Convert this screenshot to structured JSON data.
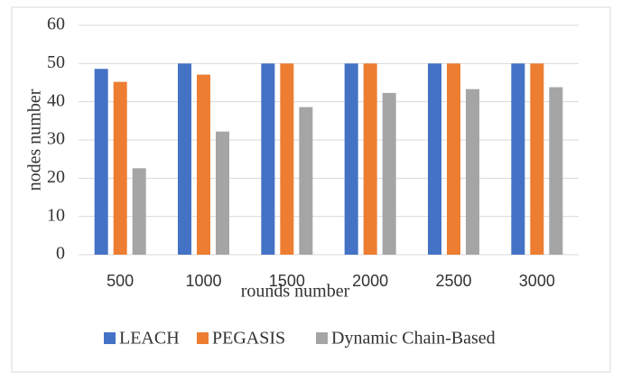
{
  "chart_data": {
    "type": "bar",
    "x_label": "rounds number",
    "y_label": "nodes number",
    "categories": [
      "500",
      "1000",
      "1500",
      "2000",
      "2500",
      "3000"
    ],
    "series": [
      {
        "name": "LEACH",
        "color": "#4472c4",
        "values": [
          48.6,
          50,
          50,
          50,
          50,
          50
        ]
      },
      {
        "name": "PEGASIS",
        "color": "#ed7d31",
        "values": [
          45.2,
          47.1,
          50,
          50,
          50,
          50
        ]
      },
      {
        "name": "Dynamic Chain-Based",
        "color": "#a5a5a5",
        "values": [
          22.6,
          32.2,
          38.6,
          42.3,
          43.3,
          43.8
        ]
      }
    ],
    "ylim": [
      0,
      60
    ],
    "yticks": [
      0,
      10,
      20,
      30,
      40,
      50,
      60
    ],
    "grid": true,
    "legend": "bottom"
  }
}
